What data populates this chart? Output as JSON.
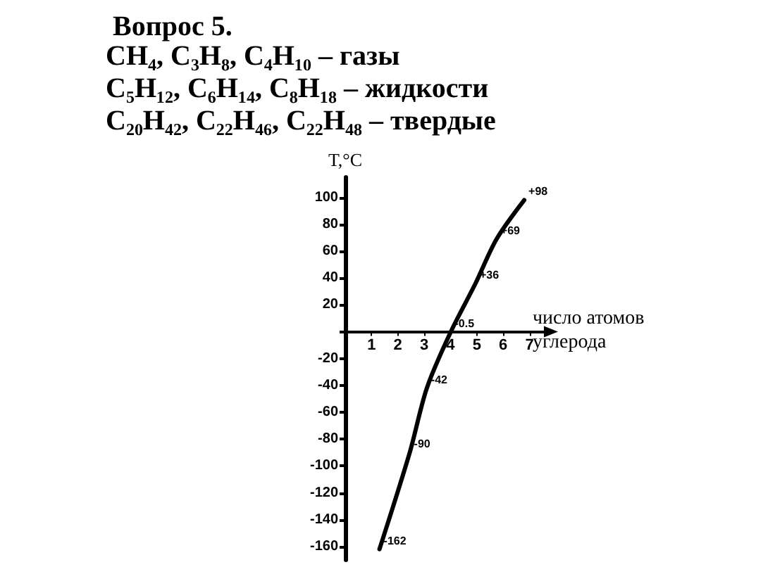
{
  "chart_data": {
    "type": "line",
    "title": "Вопрос 5.",
    "annotations": [
      "CH₄, C₃H₈, C₄H₁₀ – газы",
      "C₅H₁₂, C₆H₁₄, C₈H₁₈ – жидкости",
      "C₂₀H₄₂, C₂₂H₄₆, C₂₂H₄₈ – твердые"
    ],
    "xlabel": "число атомов\nуглерода",
    "ylabel": "T,°C",
    "x": [
      1.3,
      2.45,
      3.1,
      4.0,
      4.95,
      5.75,
      6.8
    ],
    "series": [
      {
        "color": "#000000",
        "values": [
          -162,
          -90,
          -42,
          -0.5,
          36,
          69,
          98
        ],
        "value_labels": [
          "-162",
          "-90",
          "-42",
          "-0.5",
          "+36",
          "+69",
          "+98"
        ]
      }
    ],
    "xlim": [
      0,
      7.6
    ],
    "xticks": [
      1,
      2,
      3,
      4,
      5,
      6,
      7
    ],
    "ylim": [
      -170,
      115
    ],
    "yticks": [
      -160,
      -140,
      -120,
      -100,
      -80,
      -60,
      -40,
      -20,
      {
        "value": 0,
        "label": null
      },
      20,
      40,
      60,
      80,
      100
    ],
    "grid": false,
    "marker": "none",
    "line_style": "solid"
  }
}
